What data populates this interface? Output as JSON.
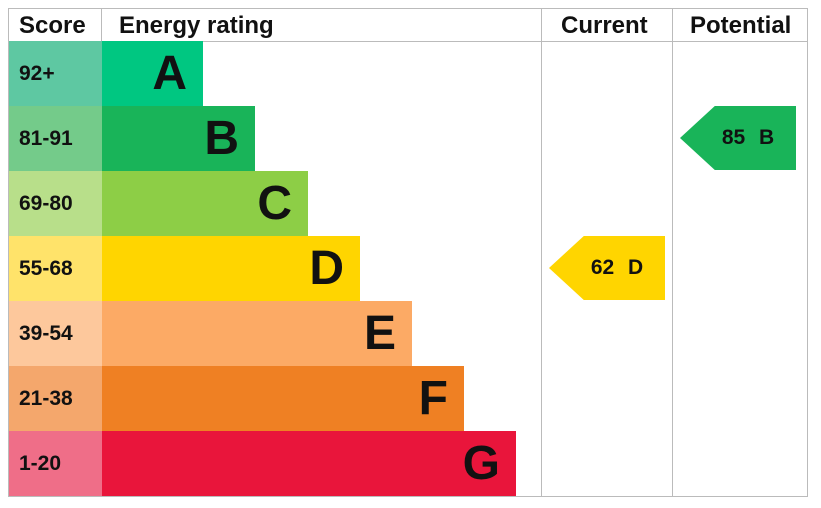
{
  "chart_data": {
    "type": "table",
    "headers": {
      "score": "Score",
      "rating": "Energy rating",
      "current": "Current",
      "potential": "Potential"
    },
    "bands": [
      {
        "letter": "A",
        "range": "92+",
        "color": "#00c781",
        "score_color": "#5ec8a2"
      },
      {
        "letter": "B",
        "range": "81-91",
        "color": "#19b459",
        "score_color": "#74cb8a"
      },
      {
        "letter": "C",
        "range": "69-80",
        "color": "#8dce46",
        "score_color": "#b8df8a"
      },
      {
        "letter": "D",
        "range": "55-68",
        "color": "#ffd500",
        "score_color": "#ffe36a"
      },
      {
        "letter": "E",
        "range": "39-54",
        "color": "#fcaa65",
        "score_color": "#fdc89c"
      },
      {
        "letter": "F",
        "range": "21-38",
        "color": "#ef8023",
        "score_color": "#f4a76c"
      },
      {
        "letter": "G",
        "range": "1-20",
        "color": "#e9153b",
        "score_color": "#ef6e88"
      }
    ],
    "current": {
      "value": 62,
      "letter": "D",
      "label": "62 D",
      "color": "#ffd500"
    },
    "potential": {
      "value": 85,
      "letter": "B",
      "label": "85 B",
      "color": "#19b459"
    }
  }
}
